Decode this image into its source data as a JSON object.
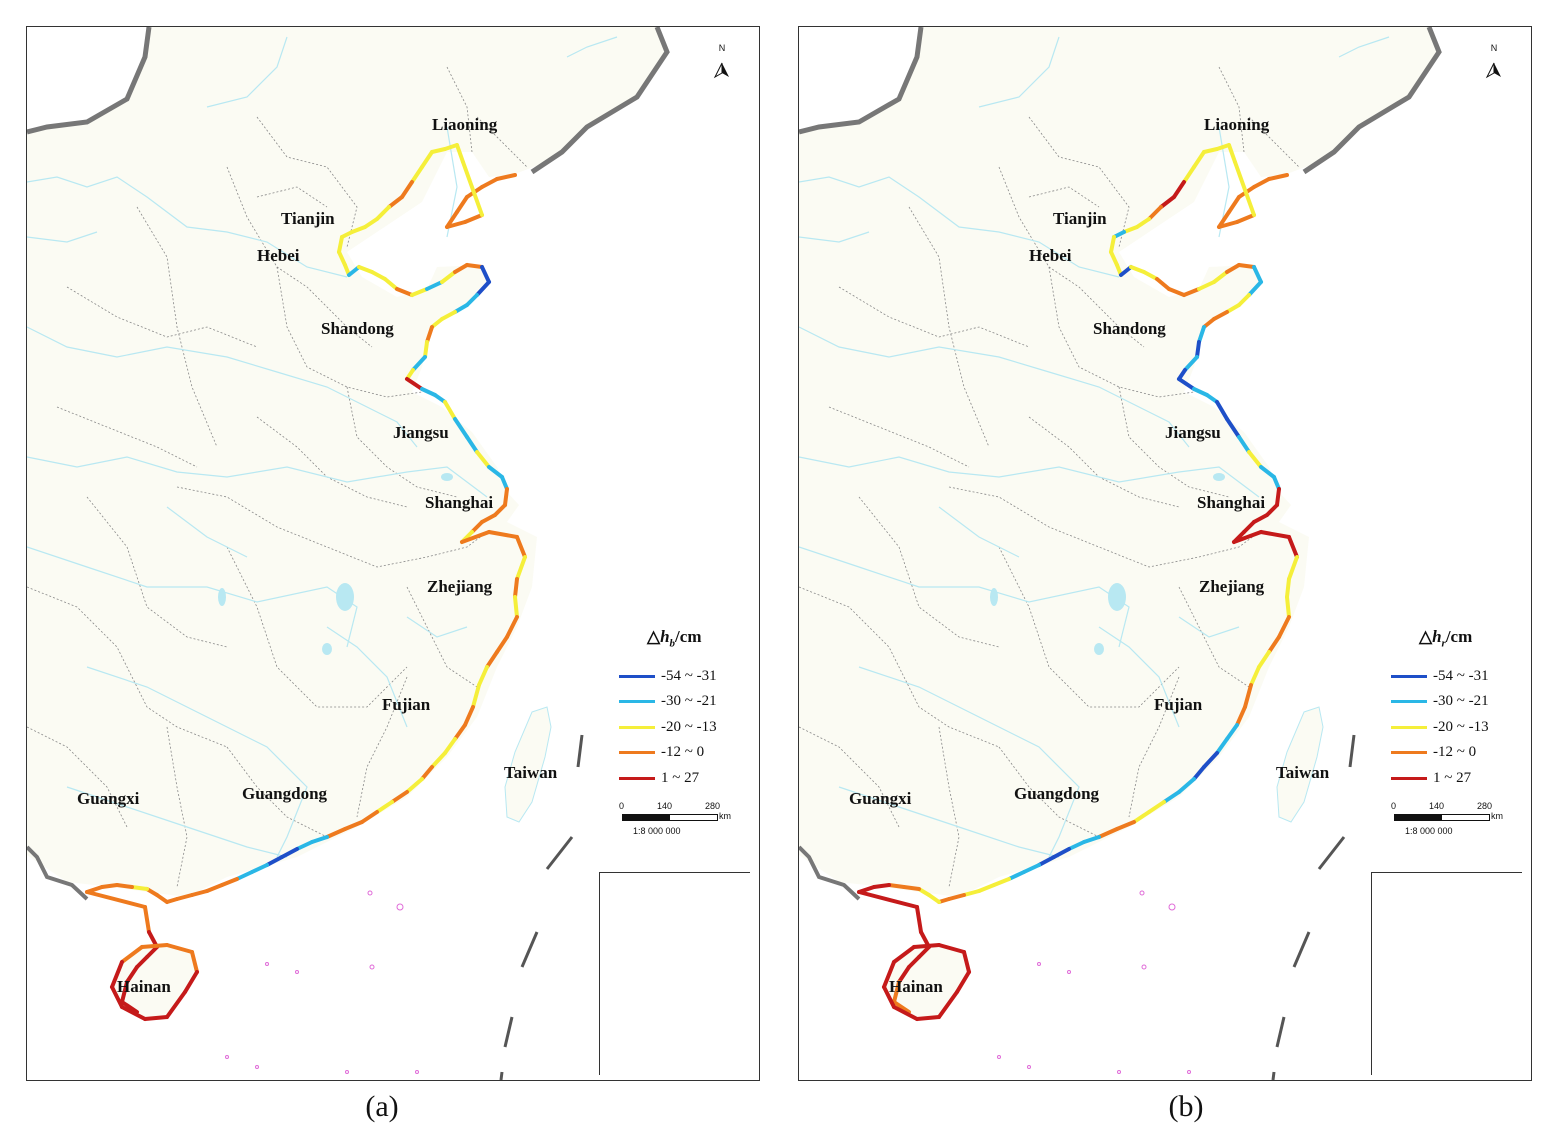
{
  "panels": [
    {
      "caption": "(a)",
      "legend": {
        "symbol": "△",
        "var": "h",
        "sub": "b",
        "unit": "/cm"
      },
      "map_labels": {
        "liaoning": "Liaoning",
        "tianjin": "Tianjin",
        "hebei": "Hebei",
        "shandong": "Shandong",
        "jiangsu": "Jiangsu",
        "shanghai": "Shanghai",
        "zhejiang": "Zhejiang",
        "fujian": "Fujian",
        "taiwan": "Taiwan",
        "guangxi": "Guangxi",
        "guangdong": "Guangdong",
        "hainan": "Hainan"
      },
      "segments": [
        3,
        3,
        3,
        3,
        3,
        3,
        3,
        2,
        2,
        2,
        2,
        2,
        2,
        3,
        3,
        2,
        2,
        2,
        2,
        2,
        2,
        2,
        1,
        2,
        2,
        2,
        3,
        2,
        1,
        2,
        3,
        3,
        0,
        0,
        1,
        1,
        2,
        2,
        3,
        2,
        1,
        2,
        4,
        1,
        1,
        2,
        1,
        1,
        2,
        1,
        1,
        3,
        3,
        3,
        3,
        2,
        3,
        3,
        3,
        2,
        3,
        2,
        3,
        3,
        3,
        2,
        2,
        3,
        3,
        2,
        2,
        3,
        2,
        3,
        2,
        3,
        3,
        3,
        1,
        1,
        0,
        0,
        1,
        1,
        3,
        3,
        3,
        3,
        3,
        3,
        3,
        2,
        3,
        3,
        3,
        3,
        3,
        4,
        4,
        4,
        4,
        4,
        4,
        4,
        4
      ]
    },
    {
      "caption": "(b)",
      "legend": {
        "symbol": "△",
        "var": "h",
        "sub": "r",
        "unit": "/cm"
      },
      "map_labels": {
        "liaoning": "Liaoning",
        "tianjin": "Tianjin",
        "hebei": "Hebei",
        "shandong": "Shandong",
        "jiangsu": "Jiangsu",
        "shanghai": "Shanghai",
        "zhejiang": "Zhejiang",
        "fujian": "Fujian",
        "taiwan": "Taiwan",
        "guangxi": "Guangxi",
        "guangdong": "Guangdong",
        "hainan": "Hainan"
      },
      "segments": [
        3,
        3,
        3,
        3,
        3,
        3,
        3,
        2,
        2,
        2,
        2,
        2,
        2,
        4,
        4,
        3,
        2,
        2,
        1,
        2,
        2,
        2,
        0,
        2,
        2,
        3,
        3,
        3,
        2,
        2,
        3,
        3,
        1,
        1,
        2,
        2,
        3,
        3,
        1,
        0,
        1,
        0,
        0,
        1,
        1,
        0,
        0,
        1,
        2,
        1,
        1,
        4,
        4,
        4,
        4,
        4,
        4,
        4,
        4,
        2,
        2,
        2,
        3,
        3,
        2,
        2,
        3,
        3,
        1,
        1,
        0,
        0,
        1,
        1,
        2,
        2,
        3,
        3,
        1,
        1,
        0,
        0,
        1,
        1,
        2,
        2,
        2,
        3,
        3,
        2,
        2,
        3,
        3,
        4,
        4,
        4,
        4,
        4,
        4,
        4,
        4
      ]
    }
  ],
  "legend_classes": [
    {
      "label": "-54 ~ -31",
      "color": "#1e4fc8"
    },
    {
      "label": "-30 ~ -21",
      "color": "#2ab7e6"
    },
    {
      "label": "-20 ~ -13",
      "color": "#f5ef3a"
    },
    {
      "label": "-12 ~ 0",
      "color": "#ee7a1e"
    },
    {
      "label": "1 ~ 27",
      "color": "#c51a1a"
    }
  ],
  "scale": {
    "ticks": [
      "0",
      "140",
      "280"
    ],
    "unit": "km",
    "ratio": "1:8 000 000"
  },
  "north": "N",
  "colors": {
    "land": "#fbfbf3",
    "river": "#b8e8f2",
    "border": "#888888",
    "coast_gray": "#777777",
    "island": "#e06bd8"
  }
}
